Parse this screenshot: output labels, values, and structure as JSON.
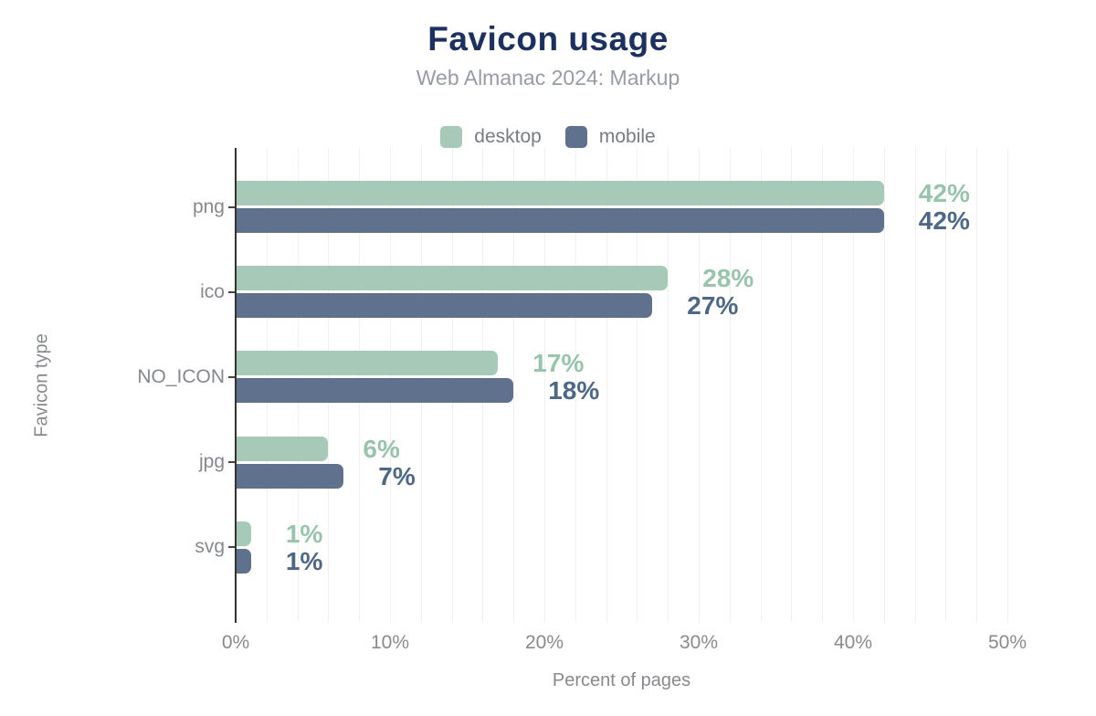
{
  "header": {
    "title": "Favicon usage",
    "subtitle": "Web Almanac 2024: Markup"
  },
  "chart_data": {
    "type": "bar",
    "orientation": "horizontal",
    "title": "Favicon usage",
    "subtitle": "Web Almanac 2024: Markup",
    "categories": [
      "png",
      "ico",
      "NO_ICON",
      "jpg",
      "svg"
    ],
    "series": [
      {
        "name": "desktop",
        "color": "#a6cab7",
        "label_color": "#98c4ab",
        "values": [
          42,
          28,
          17,
          6,
          1
        ]
      },
      {
        "name": "mobile",
        "color": "#5f718c",
        "label_color": "#4d6787",
        "values": [
          42,
          27,
          18,
          7,
          1
        ]
      }
    ],
    "value_suffix": "%",
    "xlabel": "Percent of pages",
    "ylabel": "Favicon type",
    "xlim": [
      0,
      50
    ],
    "xticks": [
      "0%",
      "10%",
      "20%",
      "30%",
      "40%",
      "50%"
    ],
    "grid": {
      "on": true,
      "step_pct": 2
    },
    "legend_position": "top"
  },
  "colors": {
    "background": "#ffffff",
    "title": "#1c3160",
    "subtitle": "#979ca4",
    "legend_text": "#787c82",
    "category_text": "#85888c",
    "tick_text": "#8a8a8a",
    "axis_title_text": "#87898d",
    "axis_line": "#333333",
    "gridline": "#f0f0f0",
    "y_tick": "#444444"
  }
}
